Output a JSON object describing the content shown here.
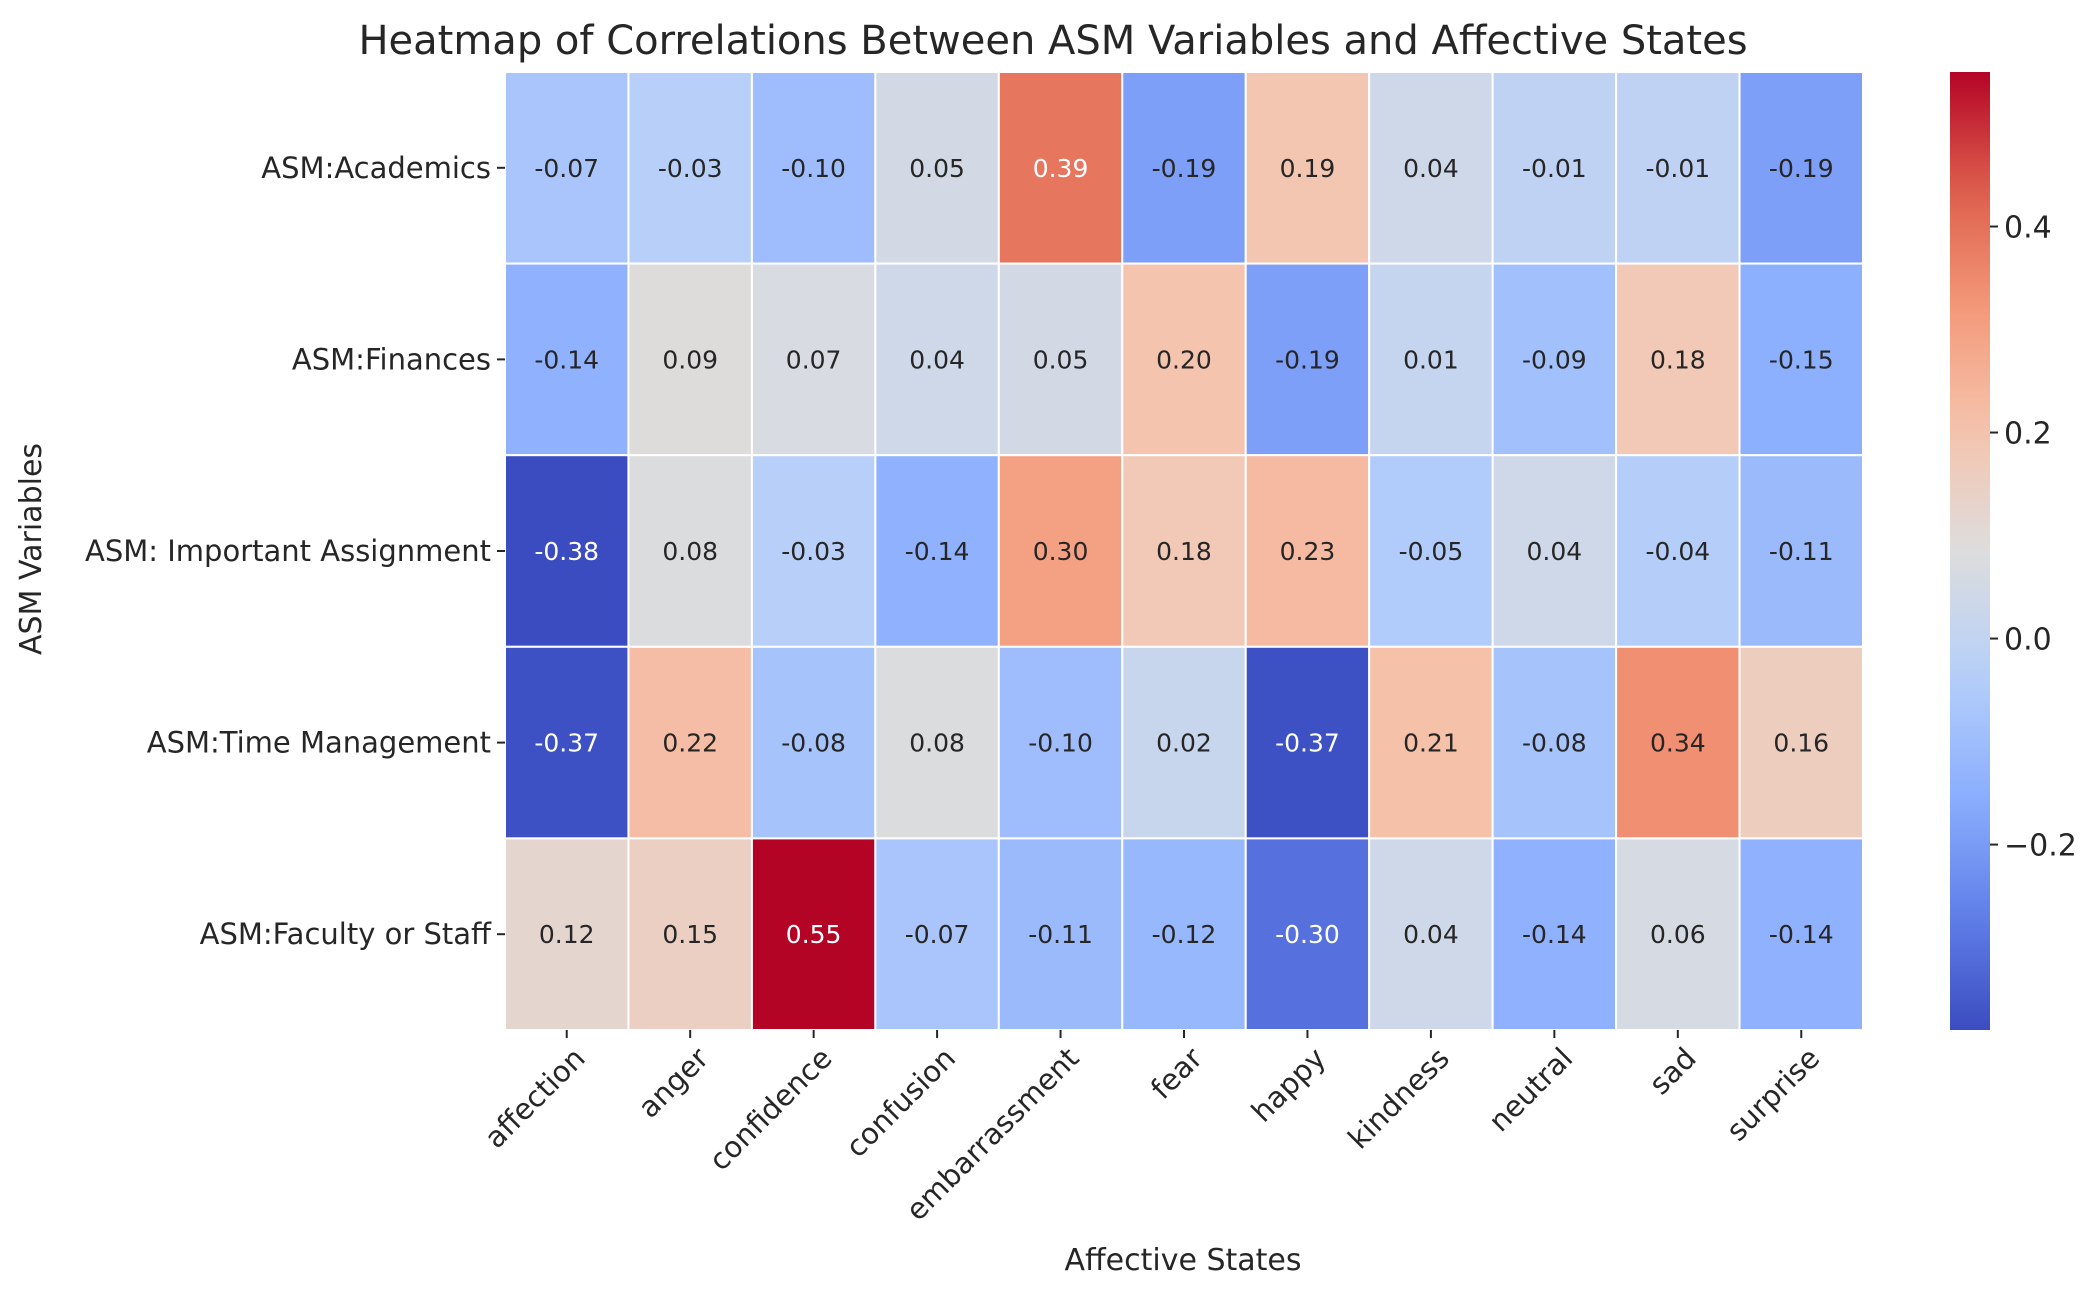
{
  "chart_data": {
    "type": "heatmap",
    "title": "Heatmap of Correlations Between ASM Variables and Affective States",
    "xlabel": "Affective States",
    "ylabel": "ASM Variables",
    "columns": [
      "affection",
      "anger",
      "confidence",
      "confusion",
      "embarrassment",
      "fear",
      "happy",
      "kindness",
      "neutral",
      "sad",
      "surprise"
    ],
    "rows": [
      "ASM:Academics",
      "ASM:Finances",
      "ASM: Important Assignment",
      "ASM:Time Management",
      "ASM:Faculty or Staff"
    ],
    "values": [
      [
        -0.07,
        -0.03,
        -0.1,
        0.05,
        0.39,
        -0.19,
        0.19,
        0.04,
        -0.01,
        -0.01,
        -0.19
      ],
      [
        -0.14,
        0.09,
        0.07,
        0.04,
        0.05,
        0.2,
        -0.19,
        0.01,
        -0.09,
        0.18,
        -0.15
      ],
      [
        -0.38,
        0.08,
        -0.03,
        -0.14,
        0.3,
        0.18,
        0.23,
        -0.05,
        0.04,
        -0.04,
        -0.11
      ],
      [
        -0.37,
        0.22,
        -0.08,
        0.08,
        -0.1,
        0.02,
        -0.37,
        0.21,
        -0.08,
        0.34,
        0.16
      ],
      [
        0.12,
        0.15,
        0.55,
        -0.07,
        -0.11,
        -0.12,
        -0.3,
        0.04,
        -0.14,
        0.06,
        -0.14
      ]
    ],
    "colormap": "coolwarm",
    "vmin": -0.38,
    "vmax": 0.55,
    "colorbar_ticks": [
      {
        "value": 0.4,
        "label": "0.4"
      },
      {
        "value": 0.2,
        "label": "0.2"
      },
      {
        "value": 0.0,
        "label": "0.0"
      },
      {
        "value": -0.2,
        "label": "−0.2"
      }
    ],
    "annotation_format": "2 decimals"
  }
}
